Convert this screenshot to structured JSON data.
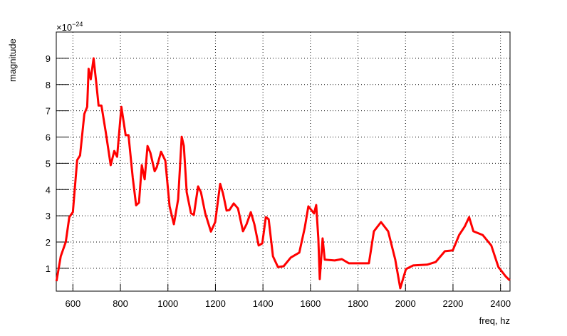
{
  "chart_data": {
    "type": "line",
    "x_label": "freq, hz",
    "y_label": "magnitude",
    "y_multiplier": {
      "base": "×10",
      "exponent": "−24"
    },
    "x": [
      531,
      549,
      570,
      585,
      600,
      618,
      630,
      648,
      660,
      666,
      675,
      687,
      699,
      708,
      720,
      738,
      759,
      774,
      786,
      804,
      822,
      834,
      852,
      866,
      878,
      890,
      902,
      914,
      926,
      944,
      953,
      971,
      989,
      1007,
      1025,
      1043,
      1058,
      1067,
      1079,
      1097,
      1109,
      1127,
      1139,
      1157,
      1181,
      1199,
      1220,
      1232,
      1247,
      1259,
      1277,
      1295,
      1316,
      1331,
      1349,
      1364,
      1382,
      1397,
      1412,
      1424,
      1442,
      1463,
      1487,
      1517,
      1553,
      1576,
      1591,
      1615,
      1624,
      1633,
      1639,
      1651,
      1660,
      1702,
      1732,
      1762,
      1807,
      1846,
      1867,
      1897,
      1927,
      1957,
      1978,
      2002,
      2032,
      2091,
      2127,
      2166,
      2199,
      2226,
      2250,
      2268,
      2286,
      2325,
      2361,
      2391,
      2421,
      2439
    ],
    "series": [
      {
        "color": "#ff0000",
        "values": [
          0.51,
          1.46,
          2.0,
          2.95,
          3.14,
          5.12,
          5.3,
          6.88,
          7.15,
          8.6,
          8.2,
          9.0,
          8.0,
          7.2,
          7.2,
          6.2,
          4.93,
          5.47,
          5.25,
          7.15,
          6.07,
          6.07,
          4.44,
          3.4,
          3.5,
          4.93,
          4.39,
          5.66,
          5.4,
          4.7,
          4.85,
          5.44,
          5.1,
          3.36,
          2.68,
          3.63,
          6.01,
          5.66,
          3.9,
          3.1,
          3.03,
          4.12,
          3.9,
          3.1,
          2.4,
          2.76,
          4.22,
          3.85,
          3.2,
          3.22,
          3.47,
          3.28,
          2.41,
          2.68,
          3.14,
          2.68,
          1.87,
          1.95,
          2.95,
          2.87,
          1.46,
          1.05,
          1.08,
          1.41,
          1.6,
          2.54,
          3.36,
          3.09,
          3.41,
          2.14,
          0.59,
          2.14,
          1.33,
          1.3,
          1.35,
          1.19,
          1.19,
          1.19,
          2.41,
          2.76,
          2.41,
          1.33,
          0.24,
          0.97,
          1.11,
          1.14,
          1.24,
          1.65,
          1.68,
          2.27,
          2.6,
          2.95,
          2.41,
          2.27,
          1.87,
          1.05,
          0.7,
          0.54
        ]
      }
    ],
    "xlim": [
      530,
      2440
    ],
    "ylim": [
      0.13,
      10
    ],
    "xticks": [
      600,
      800,
      1000,
      1200,
      1400,
      1600,
      1800,
      2000,
      2200,
      2400
    ],
    "yticks": [
      1,
      2,
      3,
      4,
      5,
      6,
      7,
      8,
      9
    ],
    "grid": true
  }
}
